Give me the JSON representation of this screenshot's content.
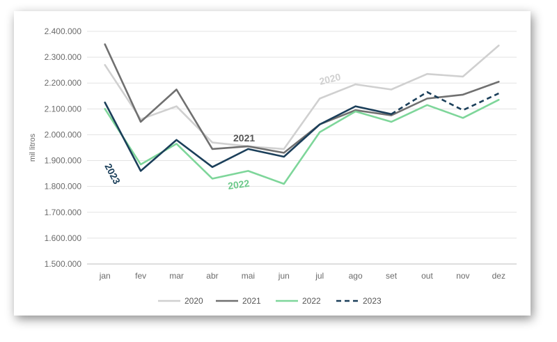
{
  "chart_data": {
    "type": "line",
    "ylabel": "mil litros",
    "xlabel": "",
    "ylim": [
      1500000,
      2400000
    ],
    "y_ticks": [
      1500000,
      1600000,
      1700000,
      1800000,
      1900000,
      2000000,
      2100000,
      2200000,
      2300000,
      2400000
    ],
    "y_tick_labels": [
      "1.500.000",
      "1.600.000",
      "1.700.000",
      "1.800.000",
      "1.900.000",
      "2.000.000",
      "2.100.000",
      "2.200.000",
      "2.300.000",
      "2.400.000"
    ],
    "categories": [
      "jan",
      "fev",
      "mar",
      "abr",
      "mai",
      "jun",
      "jul",
      "ago",
      "set",
      "out",
      "nov",
      "dez"
    ],
    "grid": "horizontal",
    "legend_position": "bottom",
    "series": [
      {
        "name": "2020",
        "color": "#d0d0d0",
        "dash": "solid",
        "values": [
          2270000,
          2060000,
          2110000,
          1970000,
          1955000,
          1945000,
          2140000,
          2195000,
          2175000,
          2235000,
          2225000,
          2345000
        ]
      },
      {
        "name": "2021",
        "color": "#707070",
        "dash": "solid",
        "values": [
          2350000,
          2050000,
          2175000,
          1945000,
          1955000,
          1930000,
          2040000,
          2095000,
          2075000,
          2140000,
          2155000,
          2205000
        ]
      },
      {
        "name": "2022",
        "color": "#7ed69a",
        "dash": "solid",
        "values": [
          2100000,
          1885000,
          1965000,
          1830000,
          1860000,
          1810000,
          2010000,
          2090000,
          2050000,
          2115000,
          2065000,
          2135000
        ]
      },
      {
        "name": "2023",
        "color": "#1b3f5a",
        "dash": "dashed",
        "values": [
          2125000,
          1860000,
          1980000,
          1875000,
          1945000,
          1915000,
          2040000,
          2110000,
          2080000,
          2165000,
          2095000,
          2160000
        ],
        "dashed_from_index": 8
      }
    ],
    "annotations": [
      {
        "text": "2020",
        "color": "#d0d0d0"
      },
      {
        "text": "2021",
        "color": "#555555"
      },
      {
        "text": "2022",
        "color": "#6cc98a"
      },
      {
        "text": "2023",
        "color": "#1b3f5a"
      }
    ]
  }
}
